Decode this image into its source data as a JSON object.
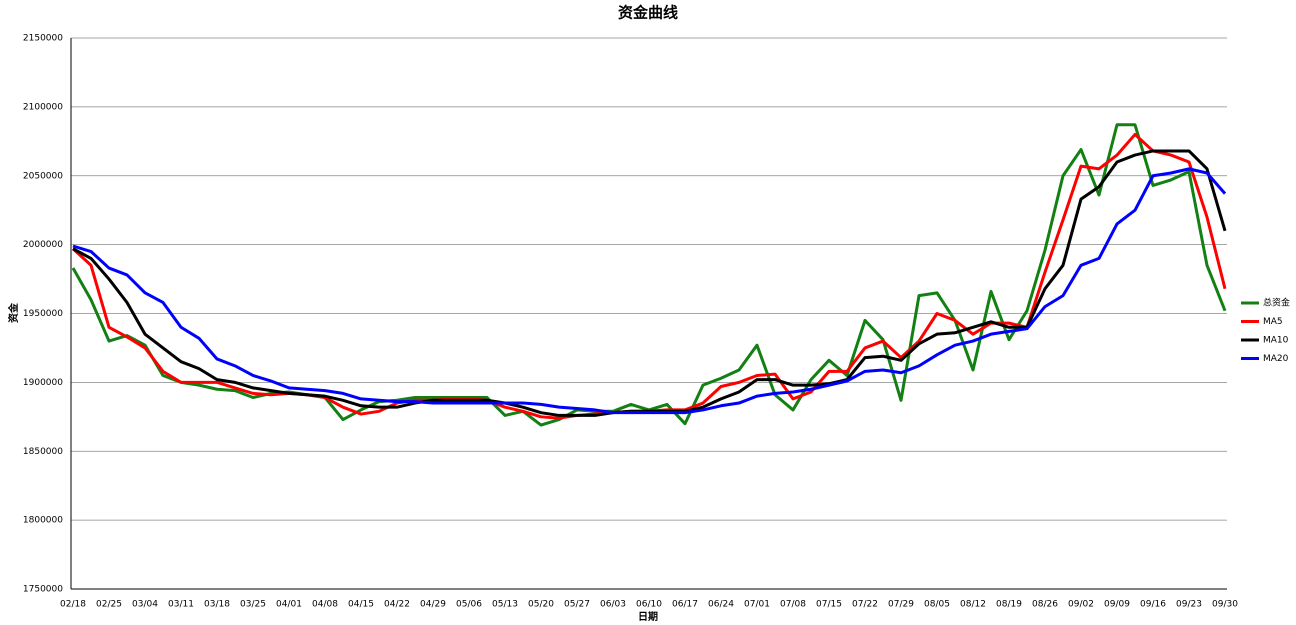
{
  "chart_data": {
    "type": "line",
    "title": "资金曲线",
    "x_label": "日期",
    "y_label": "资金",
    "categories": [
      "02/18",
      null,
      "02/25",
      null,
      "03/04",
      null,
      "03/11",
      null,
      "03/18",
      null,
      "03/25",
      null,
      "04/01",
      null,
      "04/08",
      null,
      "04/15",
      null,
      "04/22",
      null,
      "04/29",
      null,
      "05/06",
      null,
      "05/13",
      null,
      "05/20",
      null,
      "05/27",
      null,
      "06/03",
      null,
      "06/10",
      null,
      "06/17",
      null,
      "06/24",
      null,
      "07/01",
      null,
      "07/08",
      null,
      "07/15",
      null,
      "07/22",
      null,
      "07/29",
      null,
      "08/05",
      null,
      "08/12",
      null,
      "08/19",
      null,
      "08/26",
      null,
      "09/02",
      null,
      "09/09",
      null,
      "09/16",
      null,
      "09/23",
      null,
      "09/30"
    ],
    "series": [
      {
        "name": "总资金",
        "color": "#138013",
        "values": [
          1983000,
          1960000,
          1930000,
          1934000,
          1927000,
          1905000,
          1900000,
          1898000,
          1895000,
          1894000,
          1889000,
          1892000,
          1893000,
          1891000,
          1889000,
          1873000,
          1880000,
          1886000,
          1887000,
          1889000,
          1889000,
          1889000,
          1889000,
          1889000,
          1876000,
          1879000,
          1869000,
          1873000,
          1880000,
          1879000,
          1879000,
          1884000,
          1880000,
          1884000,
          1870000,
          1898000,
          1903000,
          1909000,
          1927000,
          1891000,
          1880000,
          1902000,
          1916000,
          1905000,
          1945000,
          1931000,
          1887000,
          1963000,
          1965000,
          1945000,
          1909000,
          1966000,
          1931000,
          1952000,
          1996000,
          2050000,
          2069000,
          2036000,
          2087000,
          2087000,
          2043000,
          2047000,
          2053000,
          1985000,
          1952000
        ]
      },
      {
        "name": "MA5",
        "color": "#ff0000",
        "values": [
          1997000,
          1985000,
          1940000,
          1933000,
          1925000,
          1908000,
          1900000,
          1900000,
          1900000,
          1896000,
          1892000,
          1891000,
          1892000,
          1891000,
          1889000,
          1882000,
          1877000,
          1879000,
          1885000,
          1887000,
          1887000,
          1888000,
          1888000,
          1887000,
          1882000,
          1879000,
          1875000,
          1874000,
          1876000,
          1877000,
          1878000,
          1879000,
          1879000,
          1880000,
          1880000,
          1885000,
          1897000,
          1900000,
          1905000,
          1906000,
          1888000,
          1893000,
          1908000,
          1908000,
          1925000,
          1930000,
          1918000,
          1930000,
          1950000,
          1945000,
          1935000,
          1943000,
          1943000,
          1940000,
          1980000,
          2018000,
          2057000,
          2055000,
          2065000,
          2080000,
          2068000,
          2065000,
          2060000,
          2020000,
          1968000
        ]
      },
      {
        "name": "MA10",
        "color": "#000000",
        "values": [
          1997000,
          1990000,
          1975000,
          1958000,
          1935000,
          1925000,
          1915000,
          1910000,
          1902000,
          1900000,
          1896000,
          1894000,
          1892000,
          1891000,
          1890000,
          1887000,
          1883000,
          1882000,
          1882000,
          1885000,
          1887000,
          1887000,
          1887000,
          1887000,
          1885000,
          1882000,
          1878000,
          1876000,
          1876000,
          1876000,
          1878000,
          1879000,
          1879000,
          1879000,
          1879000,
          1882000,
          1888000,
          1893000,
          1902000,
          1902000,
          1898000,
          1898000,
          1899000,
          1902000,
          1918000,
          1919000,
          1916000,
          1928000,
          1935000,
          1936000,
          1940000,
          1944000,
          1940000,
          1940000,
          1968000,
          1985000,
          2033000,
          2042000,
          2060000,
          2065000,
          2068000,
          2068000,
          2068000,
          2055000,
          2010000
        ]
      },
      {
        "name": "MA20",
        "color": "#0000ff",
        "values": [
          1999000,
          1995000,
          1983000,
          1978000,
          1965000,
          1958000,
          1940000,
          1932000,
          1917000,
          1912000,
          1905000,
          1901000,
          1896000,
          1895000,
          1894000,
          1892000,
          1888000,
          1887000,
          1886000,
          1886000,
          1885000,
          1885000,
          1885000,
          1885000,
          1885000,
          1885000,
          1884000,
          1882000,
          1881000,
          1880000,
          1878000,
          1878000,
          1878000,
          1878000,
          1878000,
          1880000,
          1883000,
          1885000,
          1890000,
          1892000,
          1893000,
          1895000,
          1898000,
          1901000,
          1908000,
          1909000,
          1907000,
          1912000,
          1920000,
          1927000,
          1930000,
          1935000,
          1937000,
          1939000,
          1955000,
          1963000,
          1985000,
          1990000,
          2015000,
          2025000,
          2050000,
          2052000,
          2055000,
          2052000,
          2037000
        ]
      }
    ],
    "ylim": [
      1750000,
      2150000
    ],
    "yticks": [
      1750000,
      1800000,
      1850000,
      1900000,
      1950000,
      2000000,
      2050000,
      2100000,
      2150000
    ],
    "grid": true,
    "legend": "right"
  }
}
